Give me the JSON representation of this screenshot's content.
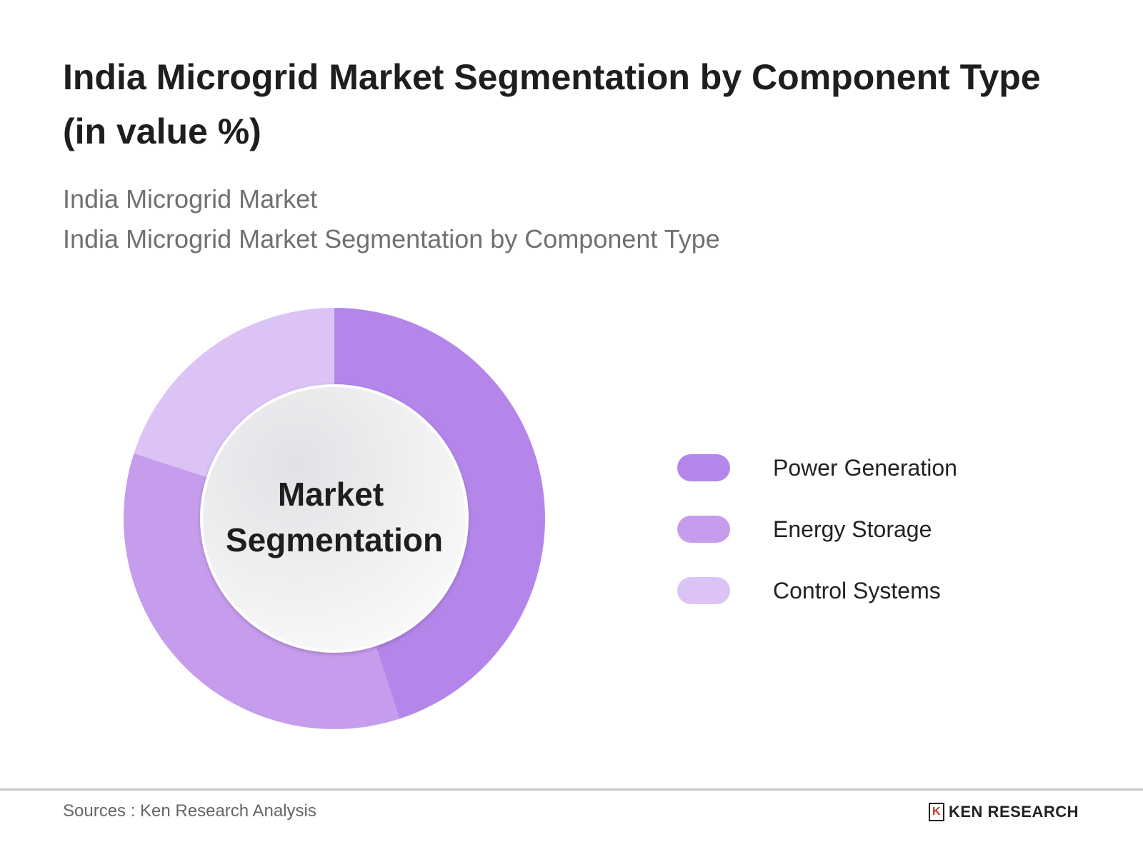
{
  "title": "India Microgrid Market Segmentation by Component Type (in value %)",
  "subtitle1": "India Microgrid Market",
  "subtitle2": "India Microgrid Market Segmentation by Component Type",
  "center_label_line1": "Market",
  "center_label_line2": "Segmentation",
  "chart_data": {
    "type": "pie",
    "variant": "donut",
    "title": "India Microgrid Market Segmentation by Component Type (in value %)",
    "categories": [
      "Power Generation",
      "Energy Storage",
      "Control Systems"
    ],
    "values": [
      45,
      35,
      20
    ],
    "colors": [
      "#b486ea",
      "#c69ded",
      "#dcc3f6"
    ],
    "legend": "right"
  },
  "footer": {
    "source": "Sources : Ken Research Analysis",
    "logo_text": "KEN RESEARCH"
  }
}
